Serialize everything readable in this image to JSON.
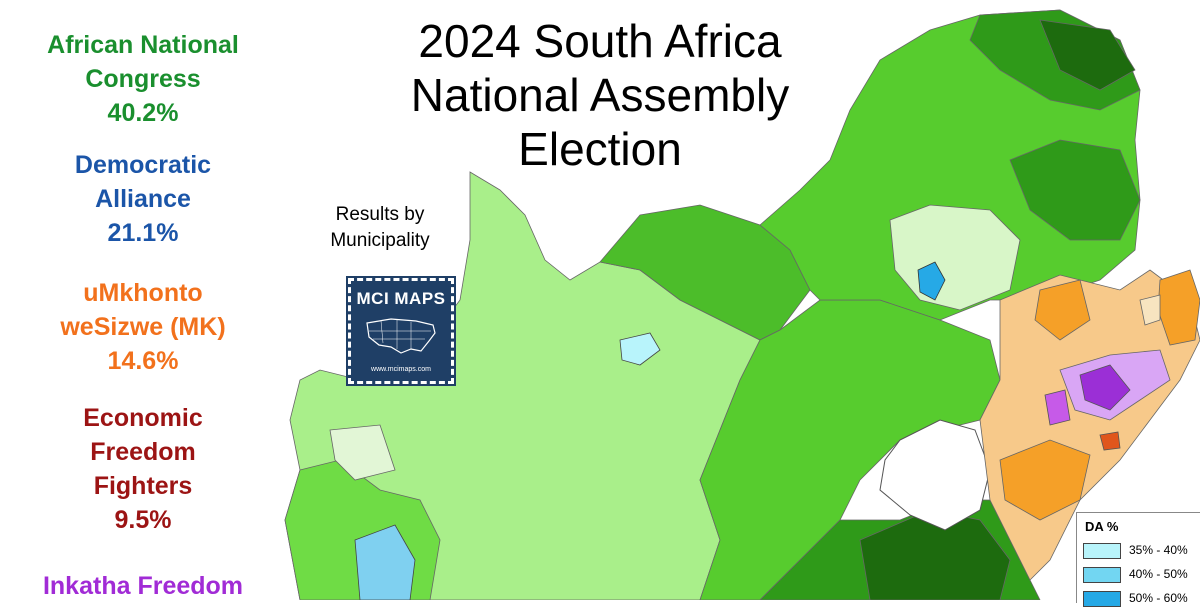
{
  "map": {
    "title_lines": [
      "2024 South Africa",
      "National Assembly",
      "Election"
    ],
    "subtitle_lines": [
      "Results by",
      "Municipality"
    ],
    "logo": {
      "text": "MCI MAPS",
      "url": "www.mcimaps.com"
    }
  },
  "parties": [
    {
      "name_lines": [
        "African National",
        "Congress"
      ],
      "percent": "40.2%",
      "color": "#1a8f2e"
    },
    {
      "name_lines": [
        "Democratic",
        "Alliance"
      ],
      "percent": "21.1%",
      "color": "#1b55a8"
    },
    {
      "name_lines": [
        "uMkhonto",
        "weSizwe (MK)"
      ],
      "percent": "14.6%",
      "color": "#f2711c"
    },
    {
      "name_lines": [
        "Economic",
        "Freedom",
        "Fighters"
      ],
      "percent": "9.5%",
      "color": "#9c1414"
    },
    {
      "name_lines": [
        "Inkatha Freedom"
      ],
      "percent": "",
      "color": "#a12bd6"
    }
  ],
  "legend": {
    "title": "DA  %",
    "items": [
      {
        "label": "35% - 40%",
        "color": "#b8f4fb"
      },
      {
        "label": "40% - 50%",
        "color": "#72d6f2"
      },
      {
        "label": "50% - 60%",
        "color": "#26a9e6"
      }
    ]
  },
  "colors": {
    "anc_light": "#c9f5b0",
    "anc_mid": "#8fe36a",
    "anc_strong": "#57cc2e",
    "anc_dark": "#2f9a19",
    "anc_darkest": "#1d6b0e",
    "mk_light": "#f7c98a",
    "mk_strong": "#f5a028",
    "ifp_light": "#d9a6f5",
    "ifp_strong": "#9b2fd6",
    "da_light": "#b8f4fb",
    "da_mid": "#72d6f2",
    "da_strong": "#26a9e6",
    "eff": "#e0561c",
    "pale": "#e6f7dc"
  }
}
